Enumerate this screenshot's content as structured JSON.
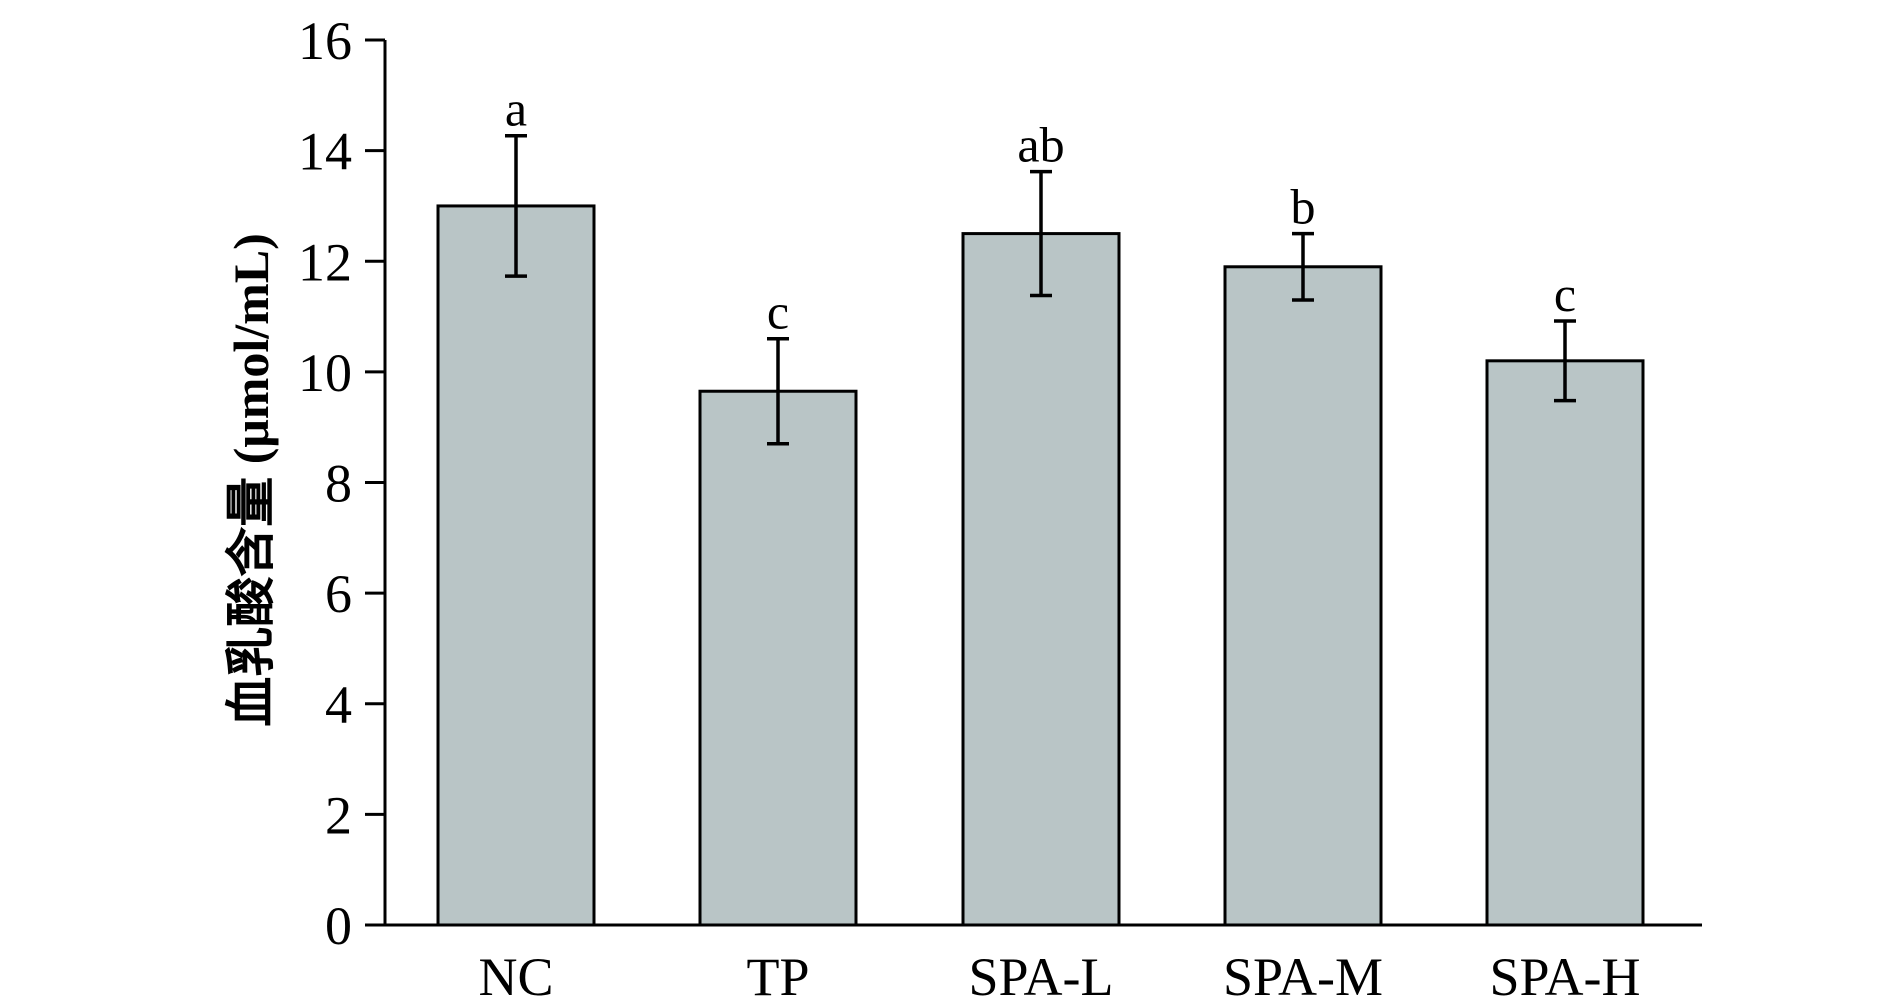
{
  "chart_data": {
    "type": "bar",
    "categories": [
      "NC",
      "TP",
      "SPA-L",
      "SPA-M",
      "SPA-H"
    ],
    "values": [
      13.0,
      9.65,
      12.5,
      11.9,
      10.2
    ],
    "errors": [
      1.27,
      0.95,
      1.12,
      0.6,
      0.72
    ],
    "significance": [
      "a",
      "c",
      "ab",
      "b",
      "c"
    ],
    "ylabel": "血乳酸含量 (μmol/mL)",
    "xlabel": "",
    "title": "",
    "ylim": [
      0,
      16
    ],
    "yticks": [
      "0",
      "2",
      "4",
      "6",
      "8",
      "10",
      "12",
      "14",
      "16"
    ],
    "bar_color": "#b9c5c6",
    "grid": false,
    "legend": "none"
  }
}
